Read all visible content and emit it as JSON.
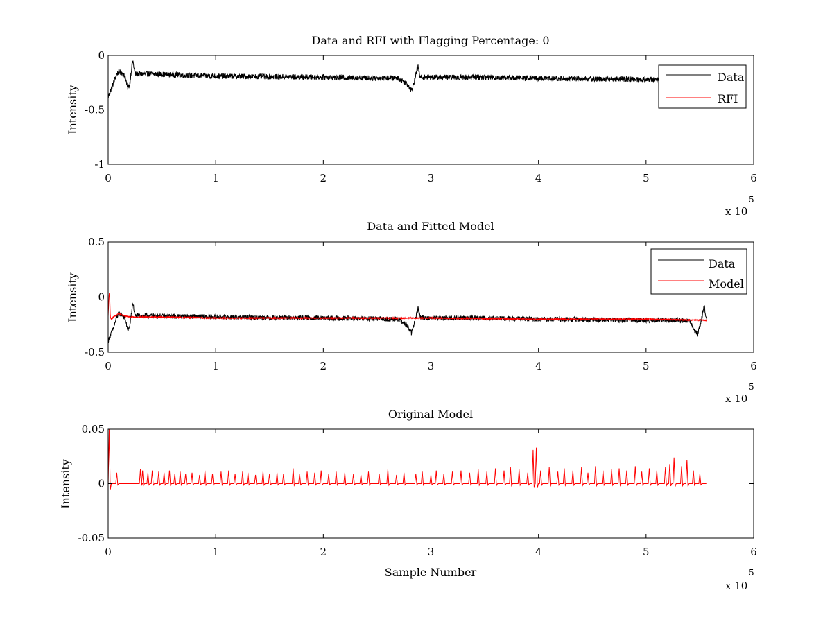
{
  "figure": {
    "colors": {
      "data": "#000000",
      "model": "#ff0000",
      "axes": "#000000",
      "background": "#ffffff"
    }
  },
  "chart_data": [
    {
      "type": "line",
      "title": "Data and RFI with Flagging Percentage: 0",
      "xlabel": "",
      "ylabel": "Intensity",
      "xlim": [
        0,
        6
      ],
      "ylim": [
        -1,
        0
      ],
      "x_multiplier": "x 10",
      "x_exponent": "5",
      "x_ticks": [
        "0",
        "1",
        "2",
        "3",
        "4",
        "5",
        "6"
      ],
      "y_ticks": [
        "-1",
        "-0.5",
        "0"
      ],
      "legend": {
        "position": "top-right",
        "entries": [
          "Data",
          "RFI"
        ]
      },
      "series": [
        {
          "name": "Data",
          "color": "#000000",
          "style": "noisy",
          "x": [
            0.0,
            0.02,
            0.05,
            0.08,
            0.1,
            0.13,
            0.16,
            0.18,
            0.2,
            0.22,
            0.23,
            0.25,
            0.4,
            1.0,
            2.0,
            2.7,
            2.78,
            2.82,
            2.85,
            2.88,
            2.9,
            2.95,
            3.5,
            4.0,
            5.0,
            5.15
          ],
          "y": [
            -0.38,
            -0.33,
            -0.25,
            -0.17,
            -0.15,
            -0.16,
            -0.2,
            -0.3,
            -0.27,
            -0.1,
            -0.05,
            -0.17,
            -0.17,
            -0.19,
            -0.2,
            -0.21,
            -0.26,
            -0.32,
            -0.22,
            -0.1,
            -0.2,
            -0.2,
            -0.2,
            -0.21,
            -0.22,
            -0.22
          ],
          "noise": 0.025
        }
      ]
    },
    {
      "type": "line",
      "title": "Data and Fitted Model",
      "xlabel": "",
      "ylabel": "Intensity",
      "xlim": [
        0,
        6
      ],
      "ylim": [
        -0.5,
        0.5
      ],
      "x_multiplier": "x 10",
      "x_exponent": "5",
      "x_ticks": [
        "0",
        "1",
        "2",
        "3",
        "4",
        "5",
        "6"
      ],
      "y_ticks": [
        "-0.5",
        "0",
        "0.5"
      ],
      "legend": {
        "position": "top-right",
        "entries": [
          "Data",
          "Model"
        ]
      },
      "series": [
        {
          "name": "Data",
          "color": "#000000",
          "style": "noisy",
          "x": [
            0.0,
            0.02,
            0.05,
            0.08,
            0.1,
            0.13,
            0.16,
            0.18,
            0.2,
            0.22,
            0.23,
            0.25,
            0.4,
            1.0,
            2.0,
            2.7,
            2.78,
            2.82,
            2.85,
            2.88,
            2.9,
            2.95,
            3.5,
            4.0,
            5.0,
            5.4,
            5.45,
            5.48,
            5.52,
            5.54,
            5.56
          ],
          "y": [
            -0.4,
            -0.35,
            -0.28,
            -0.18,
            -0.15,
            -0.16,
            -0.2,
            -0.3,
            -0.27,
            -0.12,
            -0.05,
            -0.17,
            -0.17,
            -0.18,
            -0.19,
            -0.2,
            -0.26,
            -0.33,
            -0.22,
            -0.1,
            -0.18,
            -0.19,
            -0.19,
            -0.2,
            -0.21,
            -0.21,
            -0.3,
            -0.34,
            -0.18,
            -0.08,
            -0.2
          ],
          "noise": 0.022
        },
        {
          "name": "Model",
          "color": "#ff0000",
          "style": "noisy",
          "x": [
            0.0,
            0.01,
            0.015,
            0.02,
            0.03,
            0.05,
            0.1,
            0.15,
            0.2,
            0.4,
            1.0,
            2.0,
            3.0,
            4.0,
            5.0,
            5.56
          ],
          "y": [
            -0.18,
            0.05,
            0.0,
            -0.18,
            -0.2,
            -0.18,
            -0.15,
            -0.17,
            -0.18,
            -0.18,
            -0.19,
            -0.19,
            -0.19,
            -0.2,
            -0.2,
            -0.21
          ],
          "noise": 0.006
        }
      ]
    },
    {
      "type": "line",
      "title": "Original Model",
      "xlabel": "Sample Number",
      "ylabel": "Intensity",
      "xlim": [
        0,
        6
      ],
      "ylim": [
        -0.05,
        0.05
      ],
      "x_multiplier": "x 10",
      "x_exponent": "5",
      "x_ticks": [
        "0",
        "1",
        "2",
        "3",
        "4",
        "5",
        "6"
      ],
      "y_ticks": [
        "-0.05",
        "0",
        "0.05"
      ],
      "series": [
        {
          "name": "",
          "color": "#ff0000",
          "style": "spikes",
          "baseline": 0,
          "x_end": 5.56,
          "spikes": [
            [
              0.01,
              0.05
            ],
            [
              0.08,
              0.01
            ],
            [
              0.3,
              0.013
            ],
            [
              0.32,
              0.012
            ],
            [
              0.37,
              0.01
            ],
            [
              0.41,
              0.012
            ],
            [
              0.47,
              0.011
            ],
            [
              0.52,
              0.01
            ],
            [
              0.57,
              0.012
            ],
            [
              0.62,
              0.009
            ],
            [
              0.67,
              0.011
            ],
            [
              0.72,
              0.009
            ],
            [
              0.78,
              0.01
            ],
            [
              0.85,
              0.008
            ],
            [
              0.9,
              0.012
            ],
            [
              0.97,
              0.009
            ],
            [
              1.05,
              0.011
            ],
            [
              1.12,
              0.012
            ],
            [
              1.18,
              0.009
            ],
            [
              1.25,
              0.011
            ],
            [
              1.3,
              0.01
            ],
            [
              1.37,
              0.008
            ],
            [
              1.44,
              0.011
            ],
            [
              1.5,
              0.009
            ],
            [
              1.57,
              0.01
            ],
            [
              1.63,
              0.009
            ],
            [
              1.72,
              0.014
            ],
            [
              1.78,
              0.009
            ],
            [
              1.85,
              0.011
            ],
            [
              1.92,
              0.01
            ],
            [
              1.98,
              0.012
            ],
            [
              2.05,
              0.009
            ],
            [
              2.12,
              0.011
            ],
            [
              2.2,
              0.01
            ],
            [
              2.28,
              0.009
            ],
            [
              2.35,
              0.008
            ],
            [
              2.42,
              0.011
            ],
            [
              2.52,
              0.009
            ],
            [
              2.6,
              0.013
            ],
            [
              2.68,
              0.008
            ],
            [
              2.75,
              0.01
            ],
            [
              2.86,
              0.009
            ],
            [
              2.92,
              0.011
            ],
            [
              3.0,
              0.008
            ],
            [
              3.05,
              0.012
            ],
            [
              3.12,
              0.009
            ],
            [
              3.2,
              0.011
            ],
            [
              3.28,
              0.012
            ],
            [
              3.36,
              0.01
            ],
            [
              3.44,
              0.013
            ],
            [
              3.52,
              0.011
            ],
            [
              3.6,
              0.014
            ],
            [
              3.68,
              0.012
            ],
            [
              3.74,
              0.015
            ],
            [
              3.82,
              0.013
            ],
            [
              3.9,
              0.01
            ],
            [
              3.95,
              0.031
            ],
            [
              3.98,
              0.033
            ],
            [
              4.02,
              0.012
            ],
            [
              4.1,
              0.015
            ],
            [
              4.18,
              0.011
            ],
            [
              4.24,
              0.014
            ],
            [
              4.32,
              0.012
            ],
            [
              4.4,
              0.015
            ],
            [
              4.46,
              0.01
            ],
            [
              4.53,
              0.016
            ],
            [
              4.6,
              0.012
            ],
            [
              4.68,
              0.013
            ],
            [
              4.75,
              0.014
            ],
            [
              4.82,
              0.012
            ],
            [
              4.9,
              0.016
            ],
            [
              4.96,
              0.011
            ],
            [
              5.03,
              0.014
            ],
            [
              5.1,
              0.012
            ],
            [
              5.18,
              0.015
            ],
            [
              5.22,
              0.018
            ],
            [
              5.26,
              0.024
            ],
            [
              5.33,
              0.016
            ],
            [
              5.38,
              0.022
            ],
            [
              5.44,
              0.012
            ],
            [
              5.5,
              0.009
            ]
          ]
        }
      ]
    }
  ]
}
